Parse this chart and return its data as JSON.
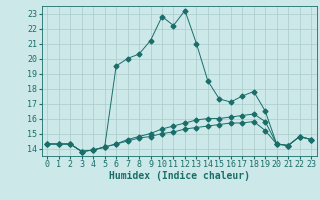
{
  "title": "",
  "xlabel": "Humidex (Indice chaleur)",
  "ylabel": "",
  "bg_color": "#cce8e8",
  "grid_color": "#aacccc",
  "line_color": "#1a6e6a",
  "xlim": [
    -0.5,
    23.5
  ],
  "ylim": [
    13.5,
    23.5
  ],
  "yticks": [
    14,
    15,
    16,
    17,
    18,
    19,
    20,
    21,
    22,
    23
  ],
  "xticks": [
    0,
    1,
    2,
    3,
    4,
    5,
    6,
    7,
    8,
    9,
    10,
    11,
    12,
    13,
    14,
    15,
    16,
    17,
    18,
    19,
    20,
    21,
    22,
    23
  ],
  "line1_x": [
    0,
    1,
    2,
    3,
    4,
    5,
    6,
    7,
    8,
    9,
    10,
    11,
    12,
    13,
    14,
    15,
    16,
    17,
    18,
    19,
    20,
    21,
    22,
    23
  ],
  "line1_y": [
    14.3,
    14.3,
    14.3,
    13.8,
    13.9,
    14.1,
    14.3,
    14.5,
    14.7,
    14.8,
    15.0,
    15.1,
    15.3,
    15.4,
    15.5,
    15.6,
    15.7,
    15.7,
    15.8,
    15.2,
    14.3,
    14.2,
    14.8,
    14.6
  ],
  "line2_x": [
    0,
    1,
    2,
    3,
    4,
    5,
    6,
    7,
    8,
    9,
    10,
    11,
    12,
    13,
    14,
    15,
    16,
    17,
    18,
    19,
    20,
    21,
    22,
    23
  ],
  "line2_y": [
    14.3,
    14.3,
    14.3,
    13.8,
    13.9,
    14.1,
    14.3,
    14.6,
    14.8,
    15.0,
    15.3,
    15.5,
    15.7,
    15.9,
    16.0,
    16.0,
    16.1,
    16.2,
    16.3,
    15.8,
    14.3,
    14.2,
    14.8,
    14.6
  ],
  "line3_x": [
    0,
    1,
    2,
    3,
    4,
    5,
    6,
    7,
    8,
    9,
    10,
    11,
    12,
    13,
    14,
    15,
    16,
    17,
    18,
    19,
    20,
    21,
    22,
    23
  ],
  "line3_y": [
    14.3,
    14.3,
    14.3,
    13.8,
    13.9,
    14.1,
    19.5,
    20.0,
    20.3,
    21.2,
    22.8,
    22.2,
    23.2,
    21.0,
    18.5,
    17.3,
    17.1,
    17.5,
    17.8,
    16.5,
    14.3,
    14.2,
    14.8,
    14.6
  ],
  "xlabel_fontsize": 7,
  "tick_fontsize": 6,
  "marker_size": 2.5
}
